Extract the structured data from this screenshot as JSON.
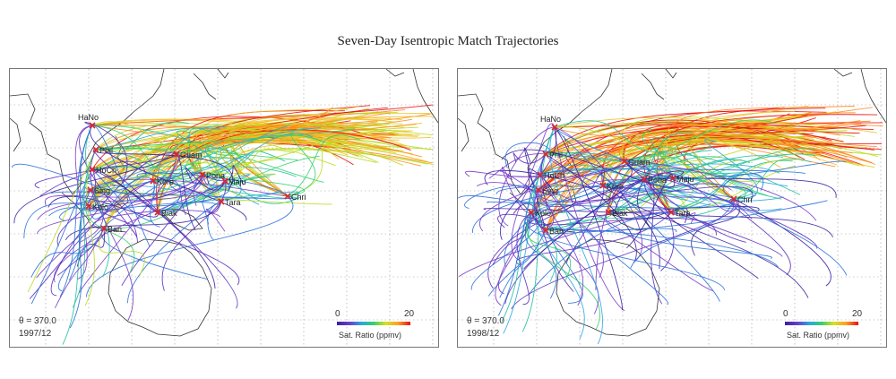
{
  "title": "Seven-Day Isentropic Match Trajectories",
  "colors": {
    "low": "#3b1fa0",
    "high": "#e81010",
    "marker": "#e0242a",
    "coast": "#333333",
    "grid": "#9a9a9a"
  },
  "panels": [
    {
      "theta": "θ = 370.0",
      "date": "1997/12",
      "colorbar": {
        "min": "0",
        "max": "20",
        "label": "Sat. Ratio (ppmv)"
      },
      "stations": [
        "HaNo",
        "Phil",
        "HoCh",
        "Sing",
        "Kolo",
        "Ban",
        "Guam",
        "Kore",
        "Pona",
        "Maju",
        "Biak",
        "Tara",
        "Chri"
      ]
    },
    {
      "theta": "θ = 370.0",
      "date": "1998/12",
      "colorbar": {
        "min": "0",
        "max": "20",
        "label": "Sat. Ratio (ppmv)"
      },
      "stations": [
        "HaNo",
        "Phil",
        "HoCh",
        "Sing",
        "Kolo",
        "Ban",
        "Guam",
        "Kore",
        "Pona",
        "Maju",
        "Biak",
        "Tara",
        "Chri"
      ]
    }
  ]
}
